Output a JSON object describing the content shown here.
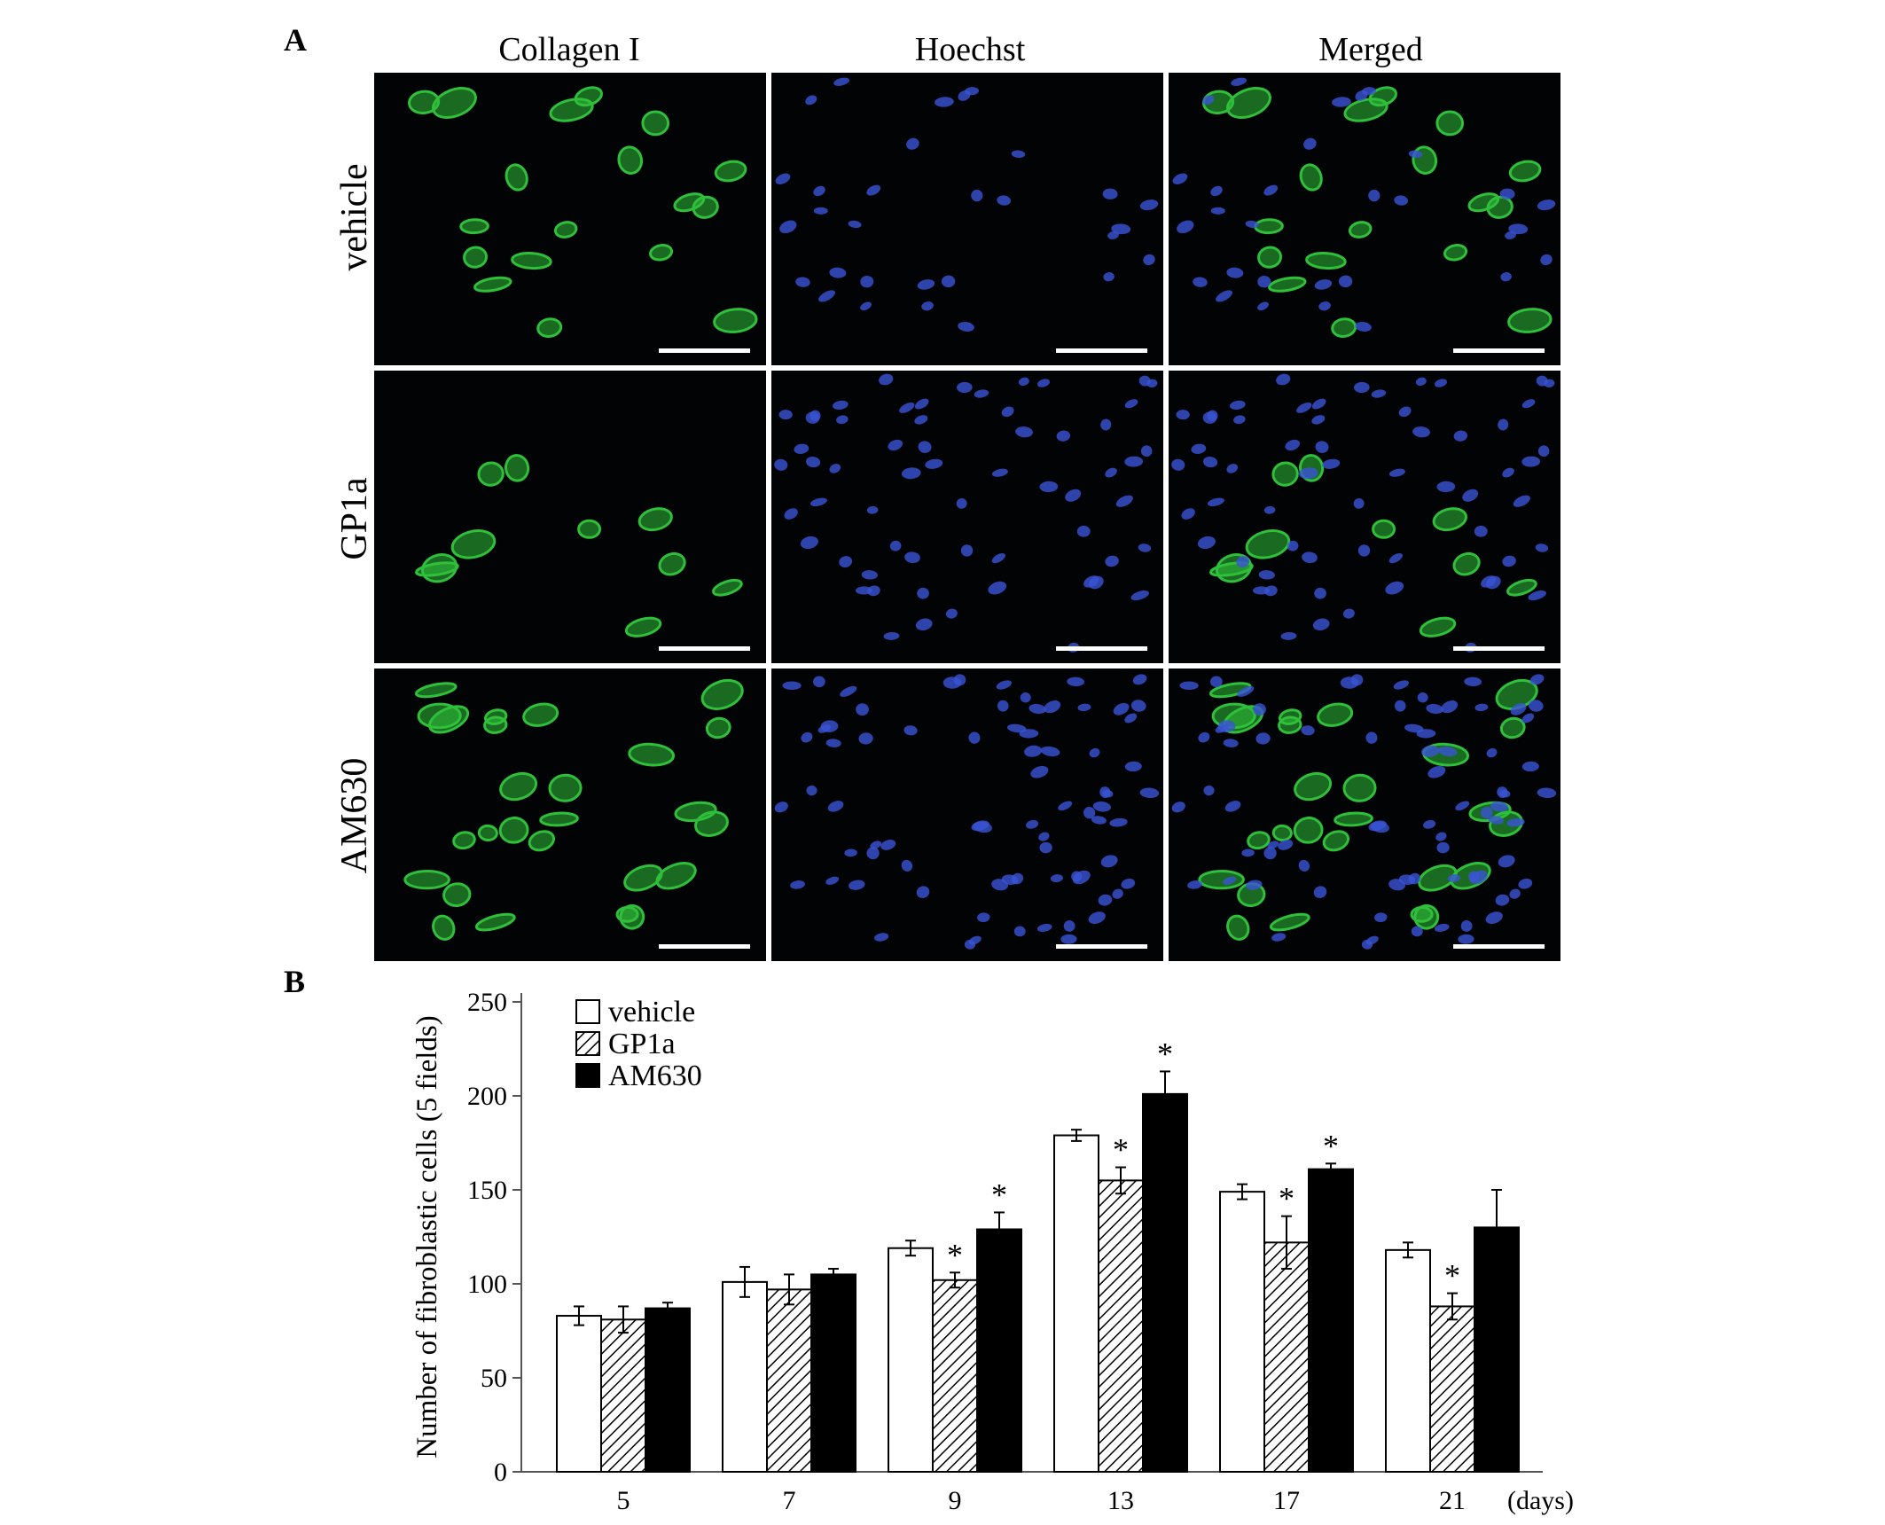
{
  "panel_a": {
    "letter": "A",
    "columns": [
      "Collagen I",
      "Hoechst",
      "Merged"
    ],
    "rows": [
      "vehicle",
      "GP1a",
      "AM630"
    ],
    "colors": {
      "collagen": "#2fbf3a",
      "nuclei": "#3a54d6",
      "background": "#020304",
      "scale_bar": "#ffffff"
    }
  },
  "panel_b": {
    "letter": "B",
    "legend_labels": [
      "vehicle",
      "GP1a",
      "AM630"
    ]
  },
  "chart_data": {
    "type": "bar",
    "categories": [
      "5",
      "7",
      "9",
      "13",
      "17",
      "21"
    ],
    "xlabel": "(days)",
    "ylabel": "Number of fibroblastic cells (5 fields)",
    "ylim": [
      0,
      250
    ],
    "yticks": [
      "0",
      "50",
      "100",
      "150",
      "200",
      "250"
    ],
    "legend_placement": "top-left",
    "grid": false,
    "series": [
      {
        "name": "vehicle",
        "fill": "white",
        "values": [
          83,
          101,
          119,
          179,
          149,
          118
        ],
        "errors": [
          5,
          8,
          4,
          3,
          4,
          4
        ],
        "significant": [
          false,
          false,
          false,
          false,
          false,
          false
        ]
      },
      {
        "name": "GP1a",
        "fill": "hatched",
        "values": [
          81,
          97,
          102,
          155,
          122,
          88
        ],
        "errors": [
          7,
          8,
          4,
          7,
          14,
          7
        ],
        "significant": [
          false,
          false,
          true,
          true,
          true,
          true
        ]
      },
      {
        "name": "AM630",
        "fill": "black",
        "values": [
          87,
          105,
          129,
          201,
          161,
          130
        ],
        "errors": [
          3,
          3,
          9,
          12,
          3,
          20
        ],
        "significant": [
          false,
          false,
          true,
          true,
          true,
          false
        ]
      }
    ],
    "significance_marker": "*"
  }
}
